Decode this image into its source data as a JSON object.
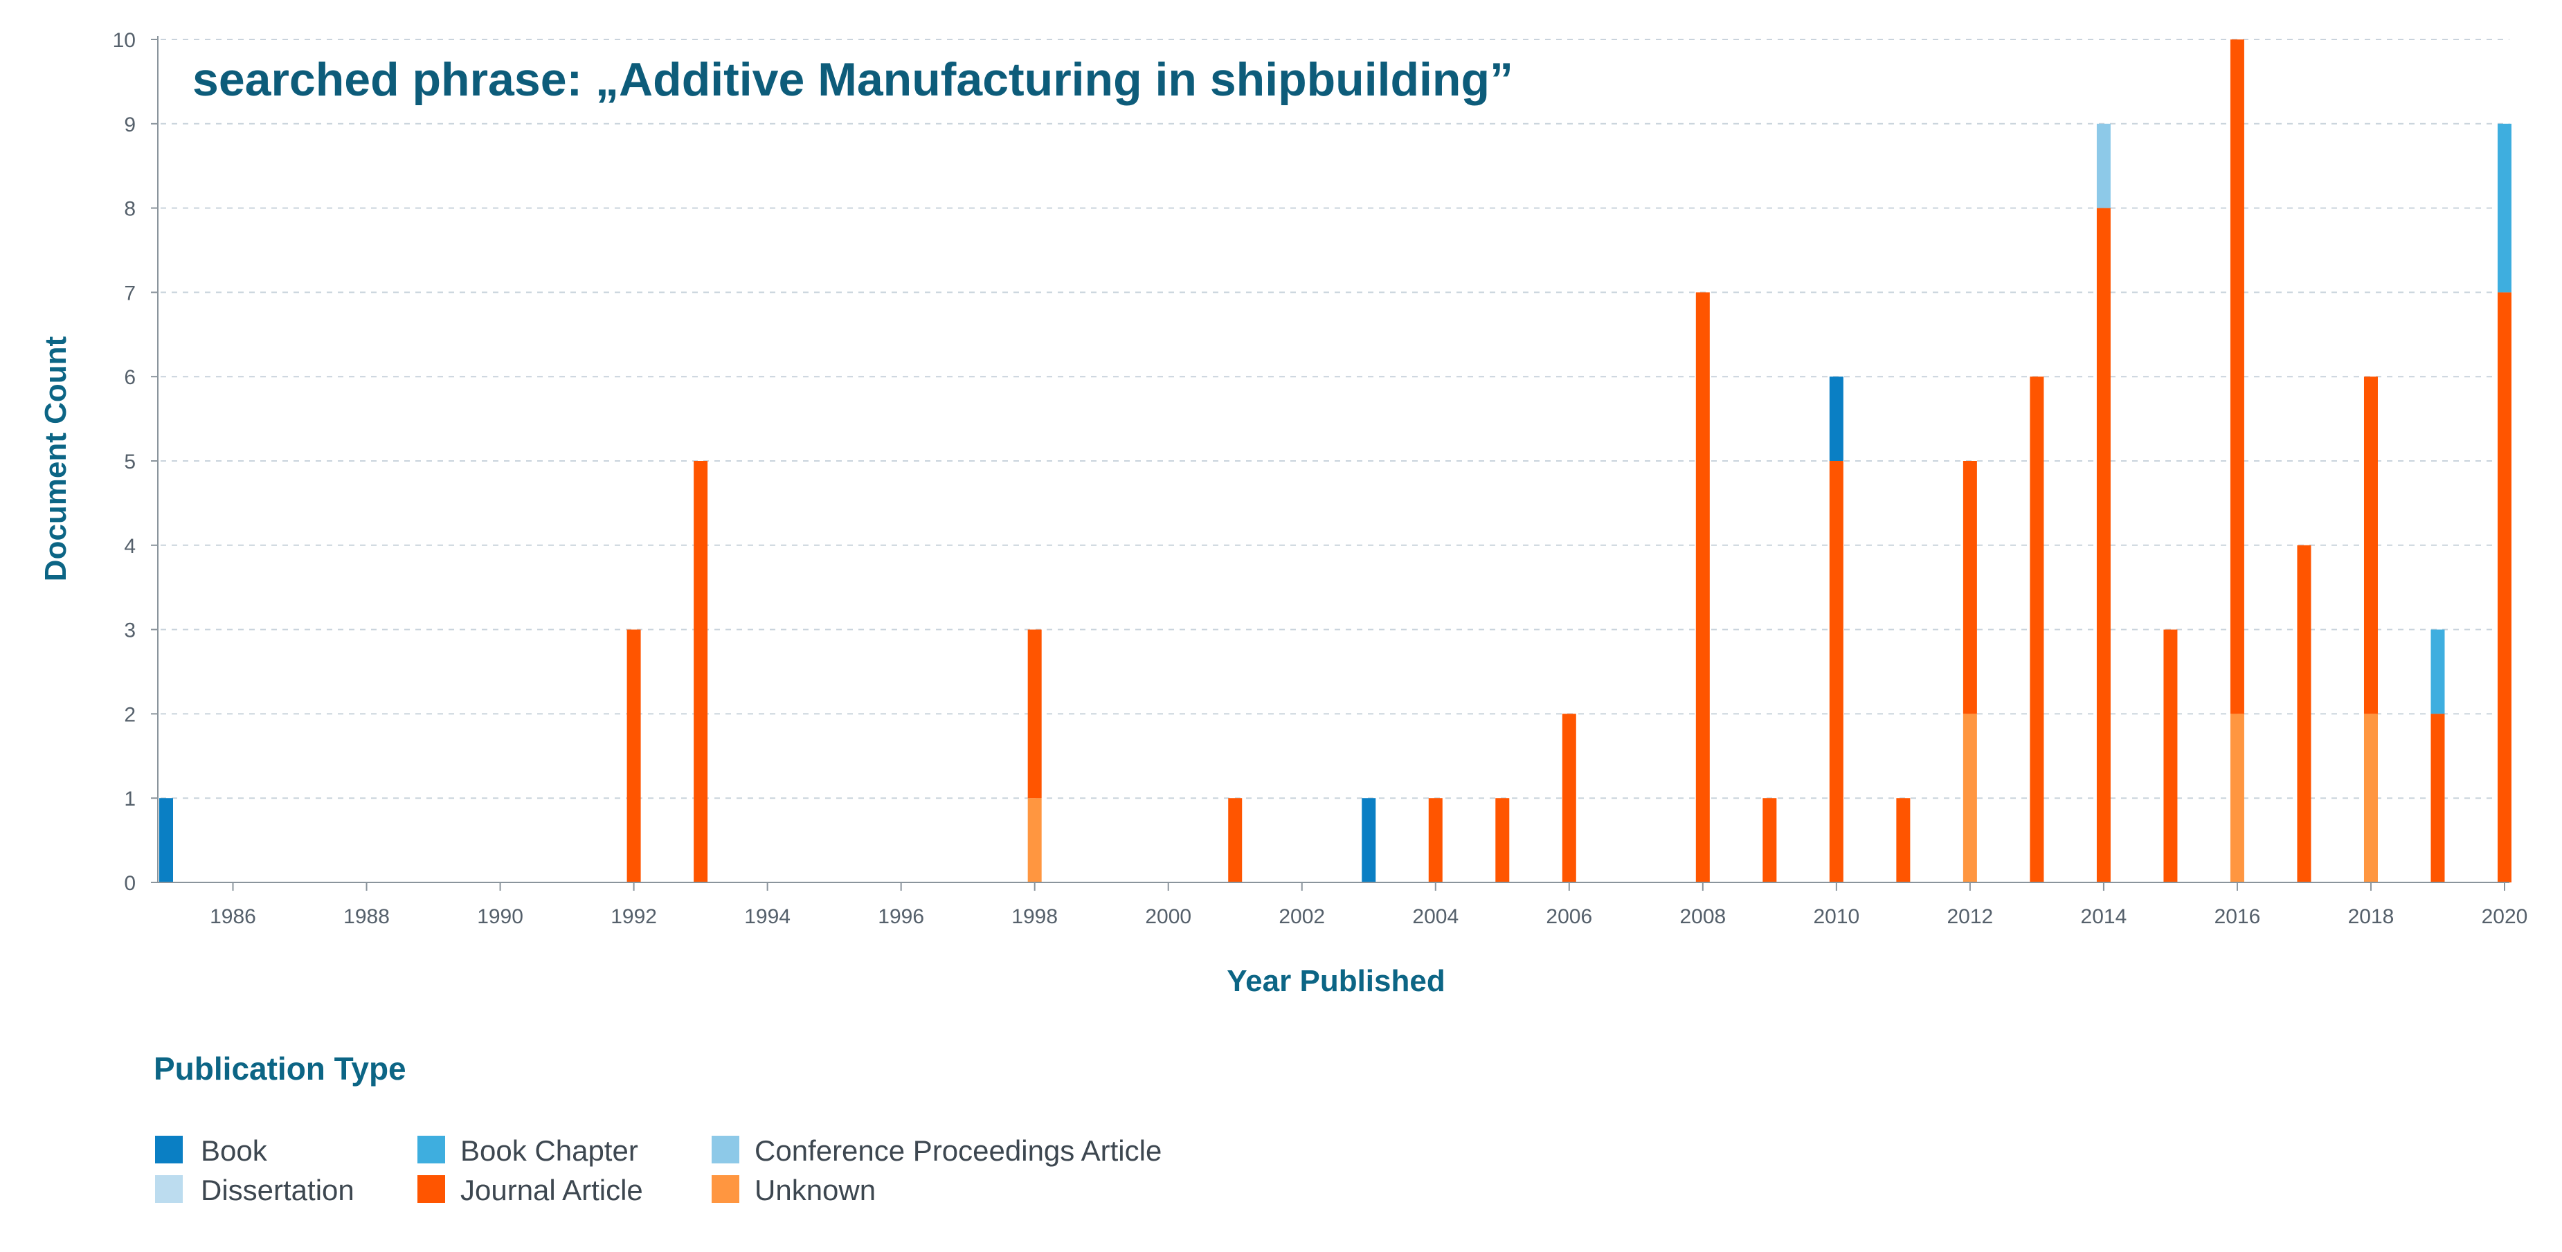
{
  "chart_data": {
    "type": "bar",
    "stacked": true,
    "title": "searched phrase: „Additive Manufacturing in shipbuilding”",
    "xlabel": "Year Published",
    "ylabel": "Document Count",
    "ylim": [
      0,
      10
    ],
    "xlim": [
      1985,
      2020
    ],
    "x_ticks": [
      1986,
      1988,
      1990,
      1992,
      1994,
      1996,
      1998,
      2000,
      2002,
      2004,
      2006,
      2008,
      2010,
      2012,
      2014,
      2016,
      2018,
      2020
    ],
    "y_ticks": [
      0,
      1,
      2,
      3,
      4,
      5,
      6,
      7,
      8,
      9,
      10
    ],
    "grid": true,
    "legend_title": "Publication Type",
    "legend_position": "bottom-left",
    "series_order": [
      "Unknown",
      "Journal Article",
      "Book",
      "Book Chapter",
      "Conference Proceedings Article",
      "Dissertation"
    ],
    "series": [
      {
        "name": "Book",
        "color": "#0a7fc4",
        "data": [
          {
            "year": 1985,
            "value": 1
          },
          {
            "year": 2003,
            "value": 1
          },
          {
            "year": 2010,
            "value": 1
          }
        ]
      },
      {
        "name": "Book Chapter",
        "color": "#3eaedf",
        "data": [
          {
            "year": 2019,
            "value": 1
          },
          {
            "year": 2020,
            "value": 2
          }
        ]
      },
      {
        "name": "Conference Proceedings Article",
        "color": "#8dc9e8",
        "data": [
          {
            "year": 2014,
            "value": 1
          }
        ]
      },
      {
        "name": "Dissertation",
        "color": "#bcdcef",
        "data": []
      },
      {
        "name": "Journal Article",
        "color": "#ff5500",
        "data": [
          {
            "year": 1992,
            "value": 3
          },
          {
            "year": 1993,
            "value": 5
          },
          {
            "year": 1998,
            "value": 2
          },
          {
            "year": 2001,
            "value": 1
          },
          {
            "year": 2004,
            "value": 1
          },
          {
            "year": 2005,
            "value": 1
          },
          {
            "year": 2006,
            "value": 2
          },
          {
            "year": 2008,
            "value": 7
          },
          {
            "year": 2009,
            "value": 1
          },
          {
            "year": 2010,
            "value": 5
          },
          {
            "year": 2011,
            "value": 1
          },
          {
            "year": 2012,
            "value": 3
          },
          {
            "year": 2013,
            "value": 6
          },
          {
            "year": 2014,
            "value": 8
          },
          {
            "year": 2015,
            "value": 3
          },
          {
            "year": 2016,
            "value": 8
          },
          {
            "year": 2017,
            "value": 4
          },
          {
            "year": 2018,
            "value": 4
          },
          {
            "year": 2019,
            "value": 2
          },
          {
            "year": 2020,
            "value": 7
          }
        ]
      },
      {
        "name": "Unknown",
        "color": "#ff9640",
        "data": [
          {
            "year": 1998,
            "value": 1
          },
          {
            "year": 2012,
            "value": 2
          },
          {
            "year": 2016,
            "value": 2
          },
          {
            "year": 2018,
            "value": 2
          }
        ]
      }
    ]
  }
}
